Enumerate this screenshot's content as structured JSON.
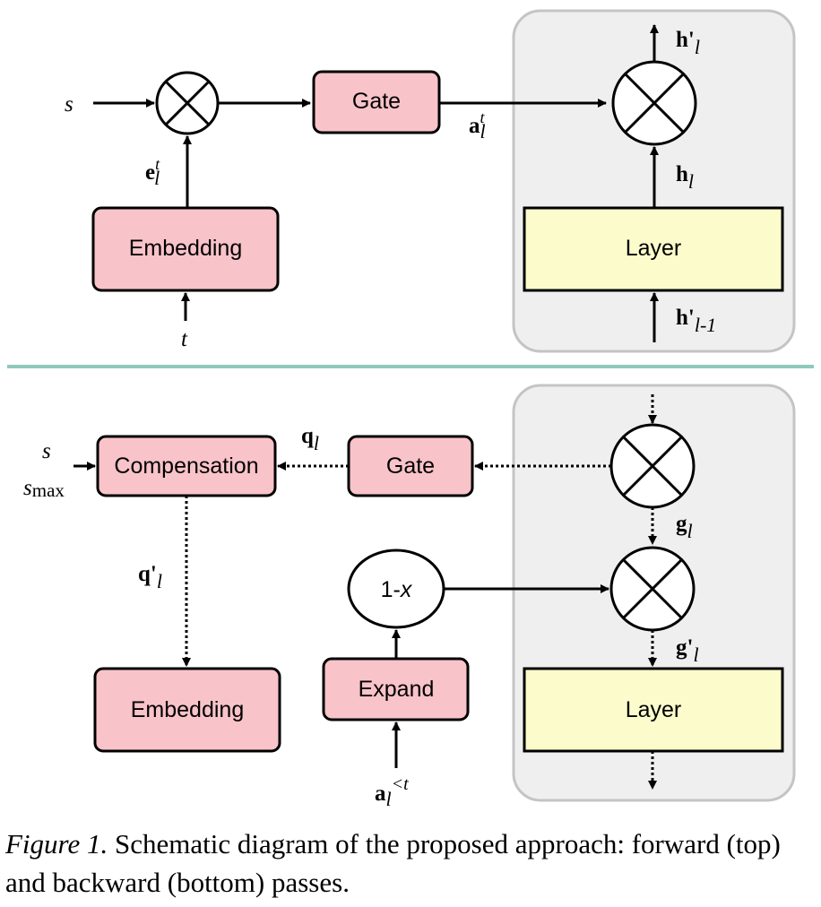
{
  "colors": {
    "pink_box": "#f8c3c9",
    "yellow_box": "#fbfbcb",
    "panel": "#efefef",
    "panel_border": "#c4c4c4",
    "divider": "#8fc9bd"
  },
  "top": {
    "gate_label": "Gate",
    "embedding_label": "Embedding",
    "layer_label": "Layer",
    "s_label": "s",
    "t_label": "t",
    "e_base": "e",
    "e_sup": "t",
    "e_sub": "l",
    "a_base": "a",
    "a_sup": "t",
    "a_sub": "l",
    "hprime_base": "h'",
    "hprime_sub": "l",
    "h_base": "h",
    "h_sub": "l",
    "hprev_base": "h'",
    "hprev_sub": "l-1"
  },
  "bottom": {
    "compensation_label": "Compensation",
    "gate_label": "Gate",
    "embedding_label": "Embedding",
    "expand_label": "Expand",
    "one_minus_x_prefix": "1-",
    "one_minus_x_var": "x",
    "layer_label": "Layer",
    "s_label": "s",
    "smax_base": "s",
    "smax_sub": "max",
    "q_base": "q",
    "q_sub": "l",
    "qprime_base": "q'",
    "qprime_sub": "l",
    "g_base": "g",
    "g_sub": "l",
    "gprime_base": "g'",
    "gprime_sub": "l",
    "a_base": "a",
    "a_sub": "l",
    "a_sup": "<t"
  },
  "caption": {
    "figure_label": "Figure 1.",
    "text": " Schematic diagram of the proposed approach: forward (top) and backward (bottom) passes."
  }
}
